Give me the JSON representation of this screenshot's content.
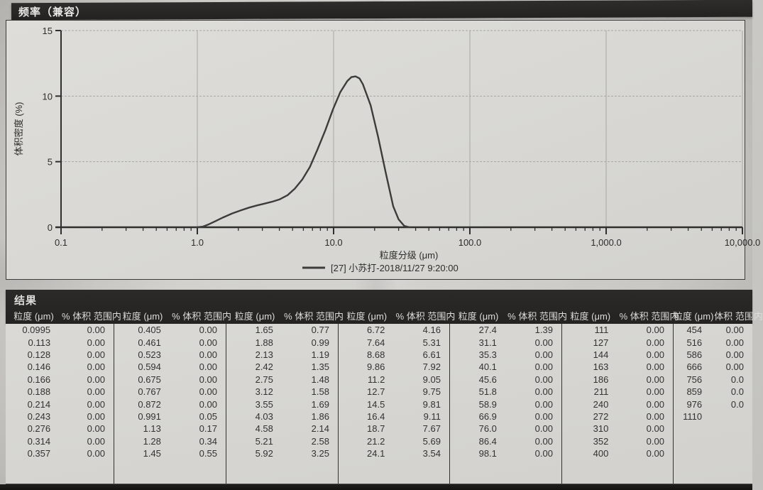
{
  "titlebar": {
    "label": "频率（兼容）"
  },
  "chart": {
    "ylabel": "体积密度 (%)",
    "xlabel": "粒度分级 (μm)",
    "legend": "[27] 小苏打-2018/11/27 9:20:00",
    "yticks": [
      "0",
      "5",
      "10",
      "15"
    ],
    "xticks": [
      "0.1",
      "1.0",
      "10.0",
      "100.0",
      "1,000.0",
      "10,000.0"
    ]
  },
  "chart_data": {
    "type": "line",
    "title": "频率（兼容）",
    "xlabel": "粒度分级 (μm)",
    "ylabel": "体积密度 (%)",
    "x_scale": "log",
    "x_range": [
      0.1,
      10000
    ],
    "y_range": [
      0,
      15
    ],
    "grid": true,
    "legend_position": "bottom",
    "series": [
      {
        "name": "[27] 小苏打-2018/11/27 9:20:00",
        "points": [
          [
            1.0,
            0
          ],
          [
            1.1,
            0.05
          ],
          [
            1.2,
            0.2
          ],
          [
            1.35,
            0.45
          ],
          [
            1.55,
            0.75
          ],
          [
            1.8,
            1.05
          ],
          [
            2.1,
            1.3
          ],
          [
            2.4,
            1.5
          ],
          [
            2.75,
            1.67
          ],
          [
            3.1,
            1.8
          ],
          [
            3.55,
            1.95
          ],
          [
            4.0,
            2.12
          ],
          [
            4.6,
            2.45
          ],
          [
            5.2,
            2.95
          ],
          [
            5.9,
            3.65
          ],
          [
            6.7,
            4.6
          ],
          [
            7.6,
            5.9
          ],
          [
            8.7,
            7.4
          ],
          [
            9.9,
            9.0
          ],
          [
            11.2,
            10.3
          ],
          [
            12.6,
            11.15
          ],
          [
            13.5,
            11.45
          ],
          [
            14.5,
            11.5
          ],
          [
            15.5,
            11.35
          ],
          [
            16.4,
            10.9
          ],
          [
            18.7,
            9.3
          ],
          [
            21.2,
            6.9
          ],
          [
            24.1,
            4.2
          ],
          [
            27.4,
            1.6
          ],
          [
            30,
            0.6
          ],
          [
            33,
            0.1
          ],
          [
            36,
            0
          ]
        ]
      }
    ]
  },
  "table": {
    "title": "结果",
    "size_header": "粒度 (μm)",
    "pct_header": "% 体积 范围内",
    "pct_header_last": "体积 范围内",
    "groups": [
      {
        "rows": [
          [
            "0.0995",
            "0.00"
          ],
          [
            "0.113",
            "0.00"
          ],
          [
            "0.128",
            "0.00"
          ],
          [
            "0.146",
            "0.00"
          ],
          [
            "0.166",
            "0.00"
          ],
          [
            "0.188",
            "0.00"
          ],
          [
            "0.214",
            "0.00"
          ],
          [
            "0.243",
            "0.00"
          ],
          [
            "0.276",
            "0.00"
          ],
          [
            "0.314",
            "0.00"
          ],
          [
            "0.357",
            "0.00"
          ]
        ]
      },
      {
        "rows": [
          [
            "0.405",
            "0.00"
          ],
          [
            "0.461",
            "0.00"
          ],
          [
            "0.523",
            "0.00"
          ],
          [
            "0.594",
            "0.00"
          ],
          [
            "0.675",
            "0.00"
          ],
          [
            "0.767",
            "0.00"
          ],
          [
            "0.872",
            "0.00"
          ],
          [
            "0.991",
            "0.05"
          ],
          [
            "1.13",
            "0.17"
          ],
          [
            "1.28",
            "0.34"
          ],
          [
            "1.45",
            "0.55"
          ]
        ]
      },
      {
        "rows": [
          [
            "1.65",
            "0.77"
          ],
          [
            "1.88",
            "0.99"
          ],
          [
            "2.13",
            "1.19"
          ],
          [
            "2.42",
            "1.35"
          ],
          [
            "2.75",
            "1.48"
          ],
          [
            "3.12",
            "1.58"
          ],
          [
            "3.55",
            "1.69"
          ],
          [
            "4.03",
            "1.86"
          ],
          [
            "4.58",
            "2.14"
          ],
          [
            "5.21",
            "2.58"
          ],
          [
            "5.92",
            "3.25"
          ]
        ]
      },
      {
        "rows": [
          [
            "6.72",
            "4.16"
          ],
          [
            "7.64",
            "5.31"
          ],
          [
            "8.68",
            "6.61"
          ],
          [
            "9.86",
            "7.92"
          ],
          [
            "11.2",
            "9.05"
          ],
          [
            "12.7",
            "9.75"
          ],
          [
            "14.5",
            "9.81"
          ],
          [
            "16.4",
            "9.11"
          ],
          [
            "18.7",
            "7.67"
          ],
          [
            "21.2",
            "5.69"
          ],
          [
            "24.1",
            "3.54"
          ]
        ]
      },
      {
        "rows": [
          [
            "27.4",
            "1.39"
          ],
          [
            "31.1",
            "0.00"
          ],
          [
            "35.3",
            "0.00"
          ],
          [
            "40.1",
            "0.00"
          ],
          [
            "45.6",
            "0.00"
          ],
          [
            "51.8",
            "0.00"
          ],
          [
            "58.9",
            "0.00"
          ],
          [
            "66.9",
            "0.00"
          ],
          [
            "76.0",
            "0.00"
          ],
          [
            "86.4",
            "0.00"
          ],
          [
            "98.1",
            "0.00"
          ]
        ]
      },
      {
        "rows": [
          [
            "111",
            "0.00"
          ],
          [
            "127",
            "0.00"
          ],
          [
            "144",
            "0.00"
          ],
          [
            "163",
            "0.00"
          ],
          [
            "186",
            "0.00"
          ],
          [
            "211",
            "0.00"
          ],
          [
            "240",
            "0.00"
          ],
          [
            "272",
            "0.00"
          ],
          [
            "310",
            "0.00"
          ],
          [
            "352",
            "0.00"
          ],
          [
            "400",
            "0.00"
          ]
        ]
      },
      {
        "rows": [
          [
            "454",
            "0.00"
          ],
          [
            "516",
            "0.00"
          ],
          [
            "586",
            "0.00"
          ],
          [
            "666",
            "0.00"
          ],
          [
            "756",
            "0.0"
          ],
          [
            "859",
            "0.0"
          ],
          [
            "976",
            "0.0"
          ],
          [
            "1110",
            ""
          ],
          [
            "",
            ""
          ],
          [
            "",
            ""
          ],
          [
            "",
            ""
          ]
        ]
      }
    ]
  },
  "colors": {
    "paper": "#d8d7d3",
    "bar_bg": "#262523",
    "axis": "#2f2f2d",
    "grid": "#a8a7a3",
    "curve": "#3c3c3a",
    "text": "#2a2a28"
  }
}
